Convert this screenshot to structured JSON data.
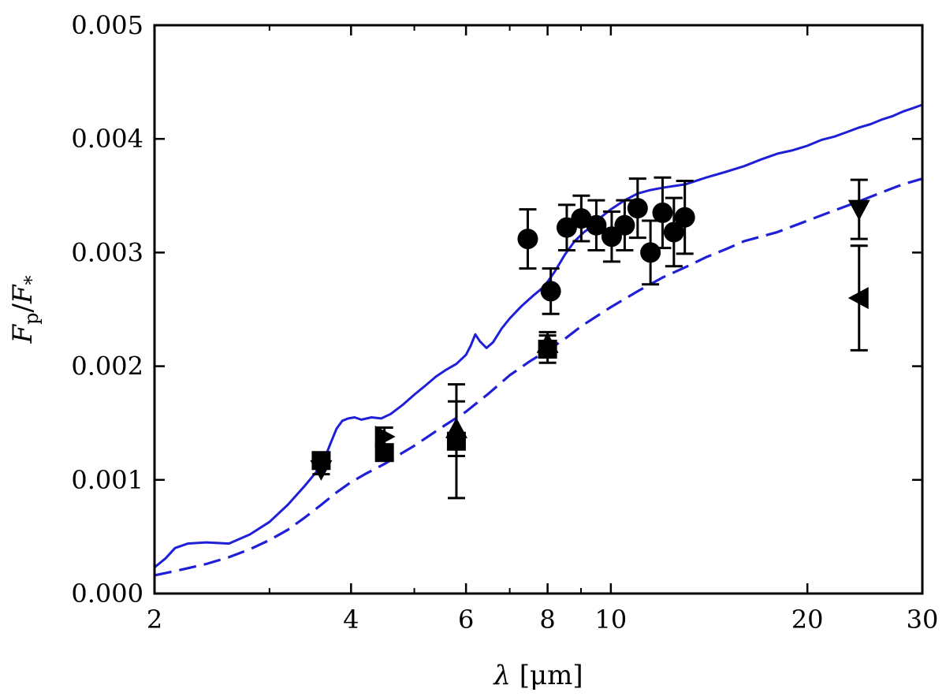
{
  "chart_data": {
    "type": "scatter",
    "title": "",
    "xlabel": "λ [μm]",
    "ylabel": "F_p/F_*",
    "xscale": "log",
    "xlim": [
      2,
      30
    ],
    "ylim": [
      0.0,
      0.005
    ],
    "grid": false,
    "x_ticks": [
      2,
      4,
      6,
      8,
      10,
      20,
      30
    ],
    "x_tick_labels": [
      "2",
      "4",
      "6",
      "8",
      "10",
      "20",
      "30"
    ],
    "y_ticks": [
      0.0,
      0.001,
      0.002,
      0.003,
      0.004,
      0.005
    ],
    "y_tick_labels": [
      "0.000",
      "0.001",
      "0.002",
      "0.003",
      "0.004",
      "0.005"
    ],
    "colors": {
      "model": "#1f1fd8",
      "points": "#000000",
      "frame": "#000000"
    },
    "models": [
      {
        "name": "model-solid",
        "style": "solid",
        "x": [
          2.0,
          2.08,
          2.15,
          2.25,
          2.4,
          2.6,
          2.8,
          3.0,
          3.2,
          3.4,
          3.55,
          3.65,
          3.72,
          3.8,
          3.88,
          3.96,
          4.05,
          4.15,
          4.3,
          4.45,
          4.6,
          4.8,
          5.0,
          5.2,
          5.4,
          5.6,
          5.8,
          6.0,
          6.1,
          6.2,
          6.3,
          6.45,
          6.6,
          6.8,
          7.0,
          7.3,
          7.6,
          7.9,
          8.2,
          8.5,
          8.8,
          9.1,
          9.4,
          9.7,
          10.0,
          10.5,
          11.0,
          11.5,
          12.0,
          13.0,
          14.0,
          15.0,
          16.0,
          17.0,
          18.0,
          19.0,
          20.0,
          21.0,
          22.0,
          23.0,
          24.0,
          25.0,
          26.0,
          27.0,
          28.0,
          29.0,
          30.0
        ],
        "y": [
          0.00023,
          0.00031,
          0.0004,
          0.00044,
          0.00045,
          0.00044,
          0.00052,
          0.00063,
          0.00078,
          0.00095,
          0.00108,
          0.0012,
          0.00132,
          0.00145,
          0.00152,
          0.00154,
          0.00155,
          0.00153,
          0.00155,
          0.00154,
          0.00158,
          0.00166,
          0.00175,
          0.00183,
          0.00191,
          0.00197,
          0.00202,
          0.0021,
          0.00218,
          0.00228,
          0.00222,
          0.00216,
          0.00221,
          0.00233,
          0.00242,
          0.00253,
          0.00262,
          0.0027,
          0.00283,
          0.00298,
          0.0031,
          0.00318,
          0.00324,
          0.00332,
          0.00338,
          0.00346,
          0.00352,
          0.00355,
          0.00357,
          0.0036,
          0.00366,
          0.00371,
          0.00376,
          0.00382,
          0.00387,
          0.0039,
          0.00394,
          0.00399,
          0.00402,
          0.00406,
          0.0041,
          0.00413,
          0.00417,
          0.0042,
          0.00424,
          0.00427,
          0.0043
        ]
      },
      {
        "name": "model-dashed",
        "style": "dashed",
        "x": [
          2.0,
          2.2,
          2.4,
          2.6,
          2.8,
          3.0,
          3.2,
          3.4,
          3.6,
          3.8,
          4.0,
          4.2,
          4.5,
          4.8,
          5.0,
          5.5,
          6.0,
          6.5,
          7.0,
          7.5,
          8.0,
          8.5,
          9.0,
          10.0,
          11.0,
          12.0,
          13.0,
          14.0,
          15.0,
          16.0,
          18.0,
          20.0,
          22.0,
          24.0,
          26.0,
          28.0,
          30.0
        ],
        "y": [
          0.00016,
          0.00021,
          0.00026,
          0.00032,
          0.00039,
          0.00047,
          0.00056,
          0.00067,
          0.00078,
          0.00089,
          0.00098,
          0.00105,
          0.00114,
          0.00124,
          0.0013,
          0.00146,
          0.0016,
          0.00176,
          0.00192,
          0.00204,
          0.00214,
          0.00224,
          0.00235,
          0.00252,
          0.00266,
          0.00278,
          0.00287,
          0.00296,
          0.00303,
          0.0031,
          0.00318,
          0.00328,
          0.00337,
          0.00345,
          0.00353,
          0.0036,
          0.00365
        ]
      }
    ],
    "series": [
      {
        "name": "circles",
        "marker": "circle",
        "points": [
          {
            "x": 7.46,
            "y": 0.00312,
            "err": 0.00026
          },
          {
            "x": 8.09,
            "y": 0.00266,
            "err": 0.0002
          },
          {
            "x": 8.56,
            "y": 0.00322,
            "err": 0.0002
          },
          {
            "x": 9.01,
            "y": 0.0033,
            "err": 0.0002
          },
          {
            "x": 9.5,
            "y": 0.00324,
            "err": 0.00022
          },
          {
            "x": 10.03,
            "y": 0.00314,
            "err": 0.00022
          },
          {
            "x": 10.5,
            "y": 0.00324,
            "err": 0.00022
          },
          {
            "x": 10.99,
            "y": 0.00339,
            "err": 0.00026
          },
          {
            "x": 11.5,
            "y": 0.003,
            "err": 0.00028
          },
          {
            "x": 12.0,
            "y": 0.00335,
            "err": 0.00031
          },
          {
            "x": 12.49,
            "y": 0.00318,
            "err": 0.0003
          },
          {
            "x": 12.98,
            "y": 0.00331,
            "err": 0.00032
          }
        ]
      },
      {
        "name": "squares",
        "marker": "square",
        "points": [
          {
            "x": 3.6,
            "y": 0.00117,
            "err": 5e-05
          },
          {
            "x": 4.5,
            "y": 0.00124,
            "err": 5e-05
          },
          {
            "x": 5.8,
            "y": 0.00134,
            "err": 0.0005
          },
          {
            "x": 8.0,
            "y": 0.00215,
            "err": 0.00012
          }
        ]
      },
      {
        "name": "triangles-down",
        "marker": "triangle-down",
        "points": [
          {
            "x": 3.6,
            "y": 0.00109,
            "err": 4e-05
          },
          {
            "x": 24.0,
            "y": 0.00338,
            "err": 0.00026
          }
        ]
      },
      {
        "name": "triangles-up",
        "marker": "triangle-up",
        "points": [
          {
            "x": 5.8,
            "y": 0.00145,
            "err": 0.00024
          },
          {
            "x": 8.0,
            "y": 0.0022,
            "err": 0.0001
          }
        ]
      },
      {
        "name": "triangles-right",
        "marker": "triangle-right",
        "points": [
          {
            "x": 4.5,
            "y": 0.00138,
            "err": 8e-05
          }
        ]
      },
      {
        "name": "triangles-left",
        "marker": "triangle-left",
        "points": [
          {
            "x": 24.0,
            "y": 0.0026,
            "err": 0.00046
          }
        ]
      }
    ]
  }
}
